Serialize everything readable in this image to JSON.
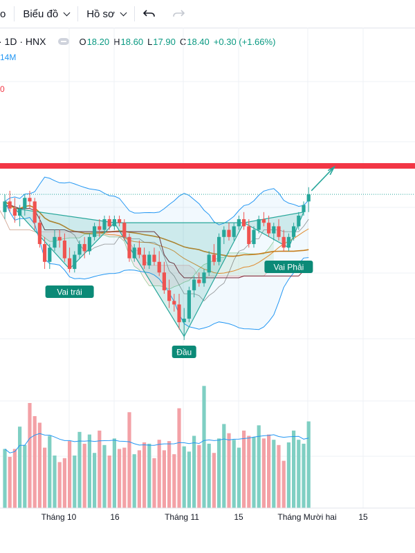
{
  "toolbar": {
    "cut_item": "o",
    "chart_menu": "Biểu đồ",
    "profile_menu": "Hồ sơ"
  },
  "header": {
    "symbol": "· 1D · HNX",
    "o_label": "O",
    "o_value": "18.20",
    "h_label": "H",
    "h_value": "18.60",
    "l_label": "L",
    "l_value": "17.90",
    "c_label": "C",
    "c_value": "18.40",
    "change": "+0.30 (+1.66%)",
    "volume_partial": "14M",
    "indicator_partial": "0"
  },
  "chart_data": {
    "type": "candlestick",
    "x_ticks": [
      "Tháng 10",
      "16",
      "Tháng 11",
      "15",
      "Tháng Mười hai",
      "15"
    ],
    "ohlc": [
      [
        17.9,
        18.4,
        17.7,
        18.2
      ],
      [
        18.2,
        18.5,
        17.9,
        18.0
      ],
      [
        18.0,
        18.3,
        17.6,
        17.8
      ],
      [
        17.8,
        18.1,
        17.5,
        18.0
      ],
      [
        18.0,
        18.4,
        17.8,
        18.3
      ],
      [
        18.3,
        18.5,
        18.0,
        18.2
      ],
      [
        18.2,
        18.3,
        17.4,
        17.6
      ],
      [
        17.6,
        17.8,
        16.9,
        17.0
      ],
      [
        17.0,
        17.2,
        16.3,
        16.5
      ],
      [
        16.5,
        17.0,
        16.3,
        16.9
      ],
      [
        16.9,
        17.4,
        16.8,
        17.2
      ],
      [
        17.2,
        17.4,
        16.9,
        17.1
      ],
      [
        17.1,
        17.3,
        16.5,
        16.6
      ],
      [
        16.6,
        16.9,
        16.2,
        16.3
      ],
      [
        16.3,
        16.8,
        16.2,
        16.7
      ],
      [
        16.7,
        17.1,
        16.6,
        17.0
      ],
      [
        17.0,
        17.2,
        16.6,
        16.8
      ],
      [
        16.8,
        17.3,
        16.7,
        17.2
      ],
      [
        17.2,
        17.6,
        17.1,
        17.5
      ],
      [
        17.5,
        17.7,
        17.2,
        17.4
      ],
      [
        17.4,
        17.8,
        17.3,
        17.7
      ],
      [
        17.7,
        17.8,
        17.4,
        17.5
      ],
      [
        17.5,
        17.8,
        17.4,
        17.7
      ],
      [
        17.7,
        17.8,
        17.5,
        17.6
      ],
      [
        17.6,
        17.7,
        17.1,
        17.2
      ],
      [
        17.2,
        17.3,
        16.5,
        16.6
      ],
      [
        16.6,
        17.0,
        16.5,
        16.9
      ],
      [
        16.9,
        17.1,
        16.6,
        16.7
      ],
      [
        16.7,
        16.9,
        16.3,
        16.4
      ],
      [
        16.4,
        16.8,
        16.3,
        16.7
      ],
      [
        16.7,
        16.9,
        16.4,
        16.5
      ],
      [
        16.5,
        16.8,
        16.1,
        16.2
      ],
      [
        16.2,
        16.5,
        15.6,
        15.7
      ],
      [
        15.7,
        16.0,
        15.2,
        15.4
      ],
      [
        15.4,
        15.6,
        15.1,
        15.3
      ],
      [
        15.3,
        15.6,
        14.6,
        14.8
      ],
      [
        14.8,
        15.2,
        14.3,
        14.9
      ],
      [
        14.9,
        15.8,
        14.8,
        15.7
      ],
      [
        15.7,
        16.1,
        15.5,
        16.0
      ],
      [
        16.0,
        16.2,
        15.8,
        15.9
      ],
      [
        15.9,
        16.3,
        15.8,
        16.2
      ],
      [
        16.2,
        16.8,
        16.1,
        16.7
      ],
      [
        16.7,
        17.0,
        16.4,
        16.5
      ],
      [
        16.5,
        17.3,
        16.4,
        17.2
      ],
      [
        17.2,
        17.5,
        17.0,
        17.4
      ],
      [
        17.4,
        17.6,
        17.1,
        17.2
      ],
      [
        17.2,
        17.6,
        17.1,
        17.5
      ],
      [
        17.5,
        17.8,
        17.4,
        17.7
      ],
      [
        17.7,
        17.9,
        17.4,
        17.5
      ],
      [
        17.5,
        17.7,
        16.9,
        17.0
      ],
      [
        17.0,
        17.5,
        16.9,
        17.4
      ],
      [
        17.4,
        17.8,
        17.3,
        17.7
      ],
      [
        17.7,
        17.9,
        17.5,
        17.6
      ],
      [
        17.6,
        17.8,
        17.2,
        17.3
      ],
      [
        17.3,
        17.6,
        17.1,
        17.5
      ],
      [
        17.5,
        17.7,
        17.1,
        17.2
      ],
      [
        17.2,
        17.4,
        16.8,
        16.9
      ],
      [
        16.9,
        17.3,
        16.8,
        17.2
      ],
      [
        17.2,
        17.6,
        17.1,
        17.5
      ],
      [
        17.5,
        17.9,
        17.4,
        17.8
      ],
      [
        17.9,
        18.2,
        17.8,
        18.1
      ],
      [
        18.2,
        18.6,
        17.9,
        18.4
      ]
    ],
    "volumes": [
      4.5,
      3.9,
      4.5,
      6.2,
      4.8,
      8.0,
      7.0,
      6.5,
      4.6,
      5.5,
      4.0,
      3.5,
      3.8,
      5.1,
      4.0,
      5.8,
      4.9,
      5.6,
      4.2,
      5.9,
      4.8,
      4.0,
      5.3,
      4.5,
      4.6,
      7.3,
      4.1,
      4.4,
      5.0,
      4.9,
      3.8,
      5.2,
      4.4,
      5.1,
      4.1,
      7.6,
      4.7,
      4.3,
      5.5,
      4.8,
      9.3,
      4.9,
      4.2,
      5.3,
      6.4,
      5.7,
      5.2,
      4.6,
      5.9,
      5.5,
      5.4,
      6.3,
      5.3,
      5.6,
      5.2,
      4.8,
      3.6,
      5.0,
      5.9,
      5.2,
      4.9,
      6.6
    ],
    "annotations": {
      "left_shoulder": "Vai trái",
      "head": "Đầu",
      "right_shoulder": "Vai Phải"
    },
    "resistance_level": 19.2,
    "last_price": 18.4,
    "colors": {
      "up": "#26a69a",
      "down": "#ef5350",
      "resistance": "#f23645",
      "bollinger": "#2196f3",
      "ma": "#e08a2c",
      "kijun": "#7b1e2d",
      "cloud_up": "#c8e6c9",
      "cloud_down": "#ffcdd2"
    }
  }
}
